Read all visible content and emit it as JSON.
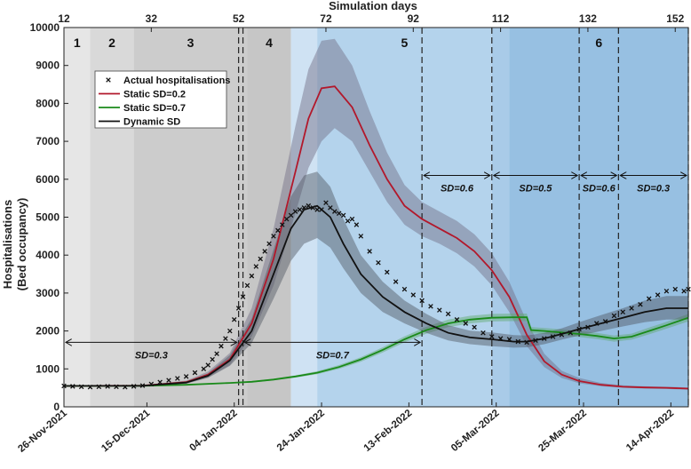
{
  "chart_data": {
    "type": "line",
    "title": "",
    "x_top_label": "Simulation days",
    "ylabel_line1": "Hospitalisations",
    "ylabel_line2": "(Bed occupancy)",
    "xlim": [
      12,
      155
    ],
    "ylim": [
      0,
      10000
    ],
    "y_ticks": [
      0,
      1000,
      2000,
      3000,
      4000,
      5000,
      6000,
      7000,
      8000,
      9000,
      10000
    ],
    "top_ticks": [
      12,
      32,
      52,
      72,
      92,
      112,
      132,
      152
    ],
    "date_ticks": [
      {
        "day": 12,
        "label": "26-Nov-2021"
      },
      {
        "day": 31,
        "label": "15-Dec-2021"
      },
      {
        "day": 51,
        "label": "04-Jan-2022"
      },
      {
        "day": 71,
        "label": "24-Jan-2022"
      },
      {
        "day": 91,
        "label": "13-Feb-2022"
      },
      {
        "day": 111,
        "label": "05-Mar-2022"
      },
      {
        "day": 131,
        "label": "25-Mar-2022"
      },
      {
        "day": 151,
        "label": "14-Apr-2022"
      }
    ],
    "phase_regions": [
      {
        "label": "1",
        "start": 12,
        "end": 18,
        "color": "#e6e6e6"
      },
      {
        "label": "2",
        "start": 18,
        "end": 28,
        "color": "#d9d9d9"
      },
      {
        "label": "3",
        "start": 28,
        "end": 54,
        "color": "#cccccc"
      },
      {
        "label": "4",
        "start": 54,
        "end": 64,
        "color": "#c6c6c6"
      },
      {
        "label": "",
        "start": 64,
        "end": 70,
        "color": "#cfe2f3"
      },
      {
        "label": "5",
        "start": 70,
        "end": 110,
        "color": "#b4d3ec"
      },
      {
        "label": "",
        "start": 110,
        "end": 114,
        "color": "#a9cbe8"
      },
      {
        "label": "6",
        "start": 114,
        "end": 155,
        "color": "#97c0e2"
      }
    ],
    "dashed_lines": [
      52,
      53,
      94,
      110,
      130,
      139,
      155
    ],
    "sd_annotations": [
      {
        "label": "SD=0.3",
        "start": 12,
        "end": 52,
        "y": 1700
      },
      {
        "label": "SD=0.7",
        "start": 53,
        "end": 94,
        "y": 1700
      },
      {
        "label": "SD=0.6",
        "start": 94,
        "end": 110,
        "y": 6100
      },
      {
        "label": "SD=0.5",
        "start": 110,
        "end": 130,
        "y": 6100
      },
      {
        "label": "SD=0.6",
        "start": 130,
        "end": 139,
        "y": 6100
      },
      {
        "label": "SD=0.3",
        "start": 139,
        "end": 155,
        "y": 6100
      }
    ],
    "series": [
      {
        "name": "Static SD=0.2",
        "color": "#b2182b",
        "band_color": "#6e6a82",
        "x": [
          12,
          30,
          40,
          45,
          50,
          55,
          60,
          65,
          68,
          71,
          74,
          78,
          82,
          86,
          90,
          94,
          98,
          102,
          106,
          110,
          114,
          118,
          122,
          126,
          130,
          135,
          140,
          145,
          150,
          155
        ],
        "y": [
          550,
          560,
          650,
          850,
          1250,
          2200,
          3900,
          6200,
          7600,
          8400,
          8450,
          7900,
          6900,
          6000,
          5300,
          4950,
          4700,
          4450,
          4100,
          3600,
          2900,
          1900,
          1200,
          850,
          680,
          580,
          530,
          510,
          500,
          480
        ],
        "lower": [
          550,
          555,
          620,
          780,
          1100,
          1850,
          3200,
          5100,
          6300,
          7000,
          7350,
          7000,
          6200,
          5400,
          4800,
          4500,
          4300,
          4050,
          3700,
          3200,
          2500,
          1600,
          1050,
          760,
          620,
          540,
          500,
          480,
          470,
          450
        ],
        "upper": [
          550,
          570,
          690,
          930,
          1420,
          2600,
          4700,
          7400,
          8900,
          9650,
          9700,
          9000,
          7800,
          6700,
          5850,
          5400,
          5150,
          4900,
          4550,
          4050,
          3300,
          2250,
          1400,
          950,
          760,
          630,
          570,
          540,
          530,
          510
        ]
      },
      {
        "name": "Static SD=0.7",
        "color": "#1a8a1a",
        "band_color": "#5da86a",
        "x": [
          12,
          30,
          40,
          50,
          55,
          60,
          65,
          70,
          75,
          80,
          85,
          90,
          95,
          100,
          105,
          110,
          115,
          118,
          119,
          122,
          126,
          130,
          134,
          138,
          142,
          146,
          150,
          155
        ],
        "y": [
          550,
          555,
          580,
          630,
          660,
          720,
          800,
          900,
          1050,
          1250,
          1500,
          1780,
          2020,
          2200,
          2300,
          2350,
          2360,
          2360,
          2020,
          2000,
          1960,
          1920,
          1870,
          1800,
          1850,
          2000,
          2150,
          2350
        ],
        "lower": [
          550,
          550,
          570,
          615,
          640,
          695,
          770,
          860,
          1000,
          1190,
          1430,
          1700,
          1930,
          2100,
          2200,
          2250,
          2260,
          2260,
          1940,
          1920,
          1880,
          1840,
          1790,
          1720,
          1770,
          1910,
          2060,
          2250
        ],
        "upper": [
          550,
          560,
          590,
          645,
          680,
          745,
          830,
          940,
          1100,
          1310,
          1570,
          1860,
          2110,
          2300,
          2400,
          2450,
          2460,
          2460,
          2100,
          2080,
          2040,
          2000,
          1950,
          1880,
          1930,
          2090,
          2240,
          2450
        ]
      },
      {
        "name": "Dynamic SD",
        "color": "#111111",
        "band_color": "#4d5560",
        "x": [
          12,
          30,
          40,
          45,
          50,
          55,
          60,
          64,
          67,
          70,
          73,
          76,
          80,
          85,
          90,
          95,
          100,
          105,
          110,
          115,
          118,
          122,
          126,
          130,
          135,
          140,
          145,
          150,
          155
        ],
        "y": [
          550,
          555,
          640,
          820,
          1220,
          2000,
          3500,
          4700,
          5200,
          5300,
          5000,
          4300,
          3500,
          2900,
          2500,
          2200,
          1950,
          1830,
          1780,
          1720,
          1720,
          1800,
          1920,
          2050,
          2200,
          2350,
          2500,
          2600,
          2600
        ],
        "lower": [
          550,
          550,
          610,
          760,
          1080,
          1680,
          2850,
          3850,
          4300,
          4450,
          4200,
          3650,
          3000,
          2500,
          2200,
          1950,
          1750,
          1650,
          1600,
          1560,
          1570,
          1650,
          1770,
          1880,
          2000,
          2120,
          2230,
          2300,
          2300
        ],
        "upper": [
          550,
          560,
          670,
          880,
          1360,
          2330,
          4150,
          5550,
          6100,
          6200,
          5800,
          4950,
          4000,
          3300,
          2800,
          2450,
          2150,
          2010,
          1960,
          1890,
          1880,
          1950,
          2070,
          2230,
          2420,
          2600,
          2800,
          2920,
          2920
        ]
      }
    ],
    "actual_hospitalisations": {
      "name": "Actual hospitalisations",
      "marker": "x",
      "x": [
        12,
        14,
        16,
        18,
        20,
        22,
        24,
        26,
        28,
        30,
        32,
        34,
        36,
        38,
        40,
        42,
        44,
        45,
        46,
        47,
        48,
        49,
        50,
        51,
        52,
        53,
        54,
        55,
        56,
        57,
        58,
        59,
        60,
        61,
        62,
        63,
        64,
        65,
        66,
        67,
        68,
        69,
        70,
        71,
        72,
        73,
        74,
        75,
        76,
        77,
        78,
        79,
        80,
        82,
        84,
        86,
        88,
        90,
        92,
        94,
        96,
        98,
        100,
        102,
        104,
        106,
        108,
        110,
        112,
        114,
        116,
        118,
        120,
        122,
        124,
        126,
        128,
        130,
        132,
        134,
        136,
        138,
        140,
        142,
        144,
        146,
        148,
        150,
        152,
        154,
        155
      ],
      "y": [
        550,
        540,
        530,
        520,
        530,
        540,
        530,
        520,
        540,
        560,
        600,
        650,
        700,
        750,
        800,
        900,
        1000,
        1100,
        1250,
        1400,
        1600,
        1800,
        2000,
        2300,
        2600,
        2900,
        3200,
        3450,
        3700,
        3900,
        4100,
        4300,
        4500,
        4650,
        4800,
        4950,
        5050,
        5150,
        5200,
        5250,
        5300,
        5250,
        5200,
        5200,
        5380,
        5250,
        5150,
        5100,
        5050,
        4900,
        4950,
        4800,
        4500,
        4100,
        3800,
        3550,
        3300,
        3100,
        2950,
        2800,
        2650,
        2550,
        2450,
        2300,
        2200,
        2100,
        1950,
        1850,
        1800,
        1780,
        1720,
        1700,
        1750,
        1800,
        1850,
        1900,
        1950,
        2050,
        2100,
        2200,
        2250,
        2400,
        2500,
        2600,
        2700,
        2850,
        2950,
        3050,
        3100,
        3050,
        3100
      ]
    },
    "legend_position": "top-left"
  }
}
